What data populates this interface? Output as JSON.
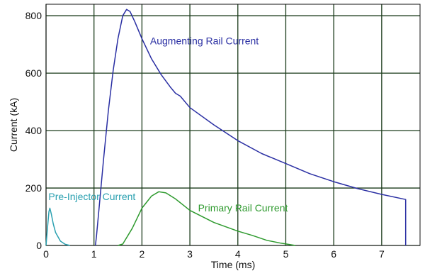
{
  "chart_data": {
    "type": "line",
    "xlabel": "Time (ms)",
    "ylabel": "Current (kA)",
    "xlim": [
      0,
      7.8
    ],
    "ylim": [
      0,
      840
    ],
    "x_ticks": [
      "0",
      "1",
      "2",
      "3",
      "4",
      "5",
      "6",
      "7"
    ],
    "y_ticks": [
      "0",
      "200",
      "400",
      "600",
      "800"
    ],
    "x_tick_values": [
      0,
      1,
      2,
      3,
      4,
      5,
      6,
      7
    ],
    "y_tick_values": [
      0,
      200,
      400,
      600,
      800
    ],
    "grid": true,
    "series": [
      {
        "name": "Augmenting Rail Current",
        "color": "#2a2fa3",
        "points": [
          [
            1.03,
            0
          ],
          [
            1.05,
            30
          ],
          [
            1.1,
            120
          ],
          [
            1.2,
            300
          ],
          [
            1.3,
            470
          ],
          [
            1.4,
            610
          ],
          [
            1.5,
            720
          ],
          [
            1.6,
            800
          ],
          [
            1.68,
            822
          ],
          [
            1.75,
            815
          ],
          [
            1.85,
            780
          ],
          [
            2.0,
            720
          ],
          [
            2.2,
            650
          ],
          [
            2.4,
            595
          ],
          [
            2.6,
            550
          ],
          [
            2.7,
            530
          ],
          [
            2.8,
            520
          ],
          [
            3.0,
            480
          ],
          [
            3.5,
            420
          ],
          [
            4.0,
            365
          ],
          [
            4.5,
            320
          ],
          [
            5.0,
            285
          ],
          [
            5.5,
            250
          ],
          [
            6.0,
            222
          ],
          [
            6.5,
            198
          ],
          [
            7.0,
            178
          ],
          [
            7.5,
            160
          ],
          [
            7.5,
            0
          ]
        ]
      },
      {
        "name": "Pre-Injector Current",
        "color": "#2aa0b0",
        "points": [
          [
            0.0,
            0
          ],
          [
            0.03,
            60
          ],
          [
            0.06,
            118
          ],
          [
            0.08,
            130
          ],
          [
            0.11,
            110
          ],
          [
            0.15,
            75
          ],
          [
            0.2,
            45
          ],
          [
            0.3,
            15
          ],
          [
            0.4,
            4
          ],
          [
            0.5,
            0
          ]
        ]
      },
      {
        "name": "Primary Rail Current",
        "color": "#2e9a2e",
        "points": [
          [
            1.5,
            0
          ],
          [
            1.6,
            5
          ],
          [
            1.8,
            60
          ],
          [
            2.0,
            130
          ],
          [
            2.2,
            172
          ],
          [
            2.35,
            187
          ],
          [
            2.5,
            183
          ],
          [
            2.7,
            162
          ],
          [
            3.0,
            122
          ],
          [
            3.5,
            80
          ],
          [
            4.0,
            50
          ],
          [
            4.3,
            35
          ],
          [
            4.6,
            18
          ],
          [
            4.9,
            8
          ],
          [
            5.2,
            0
          ]
        ]
      }
    ]
  },
  "series_labels": {
    "augmenting": "Augmenting Rail Current",
    "pre_injector": "Pre-Injector Current",
    "primary": "Primary Rail Current"
  },
  "colors": {
    "grid": "#1a3a1a",
    "axis": "#111111"
  }
}
